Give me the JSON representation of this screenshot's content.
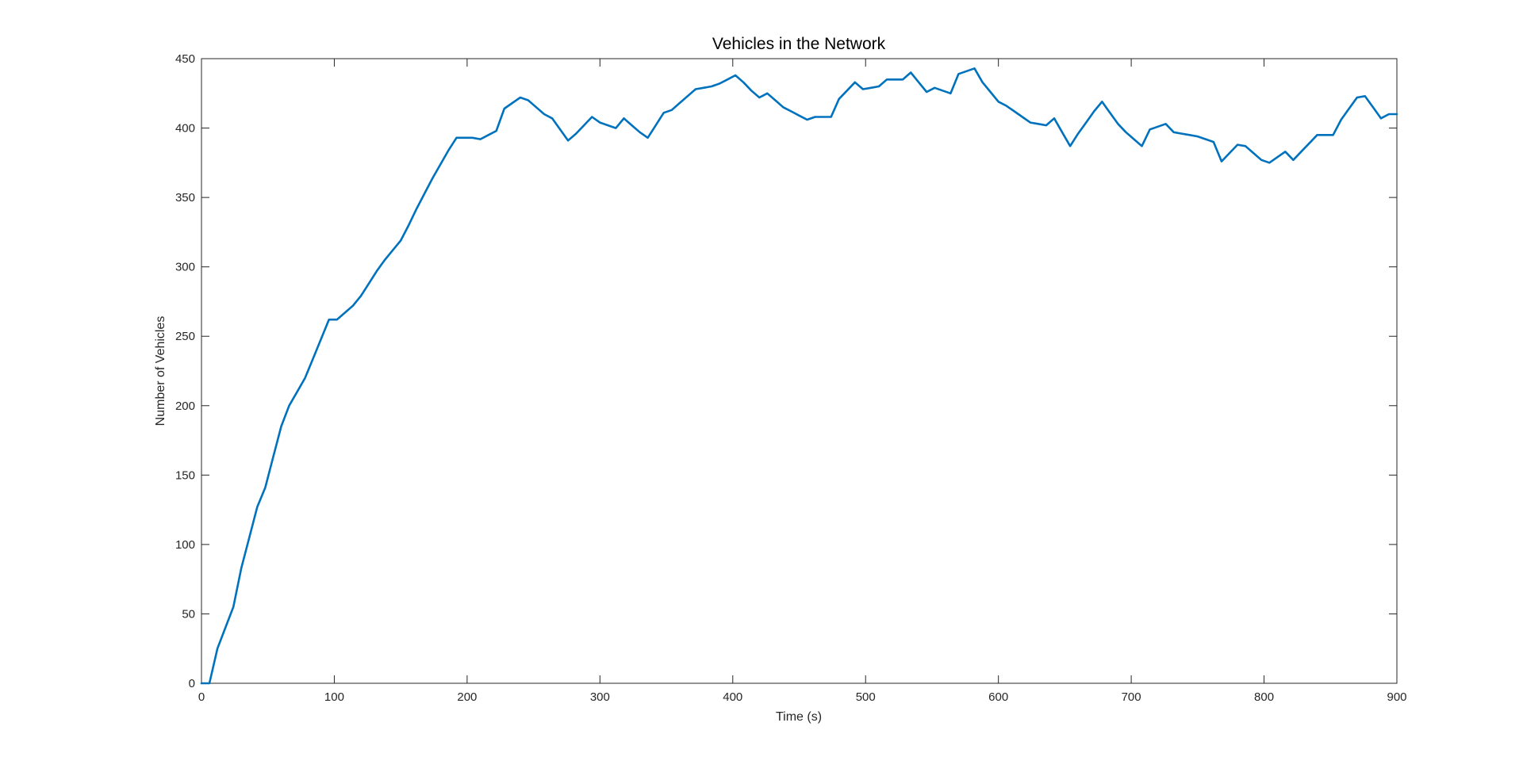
{
  "chart_data": {
    "type": "line",
    "title": "Vehicles in the Network",
    "xlabel": "Time (s)",
    "ylabel": "Number of Vehicles",
    "xlim": [
      0,
      900
    ],
    "ylim": [
      0,
      450
    ],
    "xticks": [
      "0",
      "100",
      "200",
      "300",
      "400",
      "500",
      "600",
      "700",
      "800",
      "900"
    ],
    "yticks": [
      "0",
      "50",
      "100",
      "150",
      "200",
      "250",
      "300",
      "350",
      "400",
      "450"
    ],
    "grid": false,
    "legend": "none",
    "series": [
      {
        "color": "#0072BD",
        "x": [
          0,
          6,
          12,
          18,
          24,
          30,
          36,
          42,
          48,
          54,
          60,
          66,
          72,
          78,
          84,
          90,
          96,
          102,
          108,
          114,
          120,
          126,
          132,
          138,
          144,
          150,
          156,
          162,
          168,
          174,
          180,
          186,
          192,
          198,
          204,
          210,
          216,
          222,
          228,
          234,
          240,
          246,
          252,
          258,
          264,
          270,
          276,
          282,
          288,
          294,
          300,
          306,
          312,
          318,
          324,
          330,
          336,
          342,
          348,
          354,
          360,
          366,
          372,
          378,
          384,
          390,
          396,
          402,
          408,
          414,
          420,
          426,
          432,
          438,
          444,
          450,
          456,
          462,
          468,
          474,
          480,
          486,
          492,
          498,
          504,
          510,
          516,
          522,
          528,
          534,
          540,
          546,
          552,
          558,
          564,
          570,
          576,
          582,
          588,
          594,
          600,
          606,
          612,
          618,
          624,
          630,
          636,
          642,
          648,
          654,
          660,
          666,
          672,
          678,
          684,
          690,
          696,
          702,
          708,
          714,
          720,
          726,
          732,
          738,
          744,
          750,
          756,
          762,
          768,
          774,
          780,
          786,
          792,
          798,
          804,
          810,
          816,
          822,
          828,
          834,
          840,
          846,
          852,
          858,
          864,
          870,
          876,
          882,
          888,
          894,
          900
        ],
        "y": [
          0,
          0,
          25,
          40,
          55,
          83,
          105,
          127,
          141,
          163,
          185,
          200,
          210,
          220,
          234,
          248,
          262,
          262,
          267,
          272,
          279,
          288,
          297,
          305,
          312,
          319,
          330,
          342,
          353,
          364,
          374,
          384,
          393,
          393,
          393,
          392,
          395,
          398,
          414,
          418,
          422,
          420,
          415,
          410,
          407,
          399,
          391,
          396,
          402,
          408,
          404,
          402,
          400,
          407,
          402,
          397,
          393,
          402,
          411,
          413,
          418,
          423,
          428,
          429,
          430,
          432,
          435,
          438,
          433,
          427,
          422,
          425,
          420,
          415,
          412,
          409,
          406,
          408,
          408,
          408,
          421,
          427,
          433,
          428,
          429,
          430,
          435,
          435,
          435,
          440,
          433,
          426,
          429,
          427,
          425,
          439,
          441,
          443,
          433,
          426,
          419,
          416,
          412,
          408,
          404,
          403,
          402,
          407,
          397,
          387,
          396,
          404,
          412,
          419,
          411,
          403,
          397,
          392,
          387,
          399,
          401,
          403,
          397,
          396,
          395,
          394,
          392,
          390,
          376,
          382,
          388,
          387,
          382,
          377,
          375,
          379,
          383,
          377,
          383,
          389,
          395,
          395,
          395,
          406,
          414,
          422,
          423,
          415,
          407,
          410,
          410
        ]
      }
    ]
  }
}
